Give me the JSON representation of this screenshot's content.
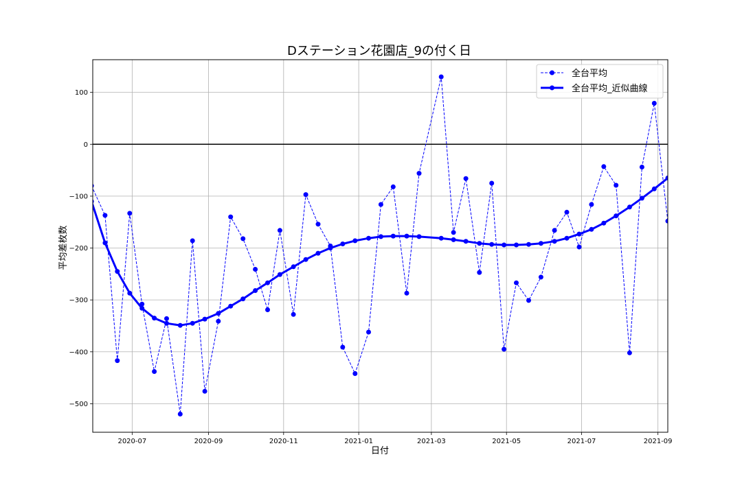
{
  "chart_data": {
    "type": "line",
    "title": "Dステーション花園店_9の付く日",
    "xlabel": "日付",
    "ylabel": "平均差枚数",
    "x_ticks": [
      "2020-07",
      "2020-09",
      "2020-11",
      "2021-01",
      "2021-03",
      "2021-05",
      "2021-07",
      "2021-09"
    ],
    "y_ticks": [
      100,
      0,
      -100,
      -200,
      -300,
      -400,
      -500
    ],
    "xlim": [
      "2020-05-30",
      "2021-09-09"
    ],
    "ylim": [
      -555,
      163
    ],
    "grid": true,
    "reference_line_y": 0,
    "legend_position": "upper right",
    "colors": {
      "series": "#0000ff",
      "reference": "#000000",
      "grid": "#b0b0b0"
    },
    "series": [
      {
        "name": "全台平均",
        "style": "dashed",
        "points": [
          [
            "2020-05-29",
            -80
          ],
          [
            "2020-06-09",
            -137
          ],
          [
            "2020-06-19",
            -417
          ],
          [
            "2020-06-29",
            -133
          ],
          [
            "2020-07-09",
            -308
          ],
          [
            "2020-07-19",
            -438
          ],
          [
            "2020-07-29",
            -336
          ],
          [
            "2020-08-09",
            -520
          ],
          [
            "2020-08-19",
            -186
          ],
          [
            "2020-08-29",
            -476
          ],
          [
            "2020-09-09",
            -341
          ],
          [
            "2020-09-19",
            -140
          ],
          [
            "2020-09-29",
            -182
          ],
          [
            "2020-10-09",
            -241
          ],
          [
            "2020-10-19",
            -319
          ],
          [
            "2020-10-29",
            -166
          ],
          [
            "2020-11-09",
            -328
          ],
          [
            "2020-11-19",
            -97
          ],
          [
            "2020-11-29",
            -154
          ],
          [
            "2020-12-09",
            -196
          ],
          [
            "2020-12-19",
            -391
          ],
          [
            "2020-12-29",
            -442
          ],
          [
            "2021-01-09",
            -362
          ],
          [
            "2021-01-19",
            -116
          ],
          [
            "2021-01-29",
            -82
          ],
          [
            "2021-02-09",
            -287
          ],
          [
            "2021-02-19",
            -56
          ],
          [
            "2021-03-09",
            130
          ],
          [
            "2021-03-19",
            -170
          ],
          [
            "2021-03-29",
            -66
          ],
          [
            "2021-04-09",
            -247
          ],
          [
            "2021-04-19",
            -75
          ],
          [
            "2021-04-29",
            -395
          ],
          [
            "2021-05-09",
            -267
          ],
          [
            "2021-05-19",
            -301
          ],
          [
            "2021-05-29",
            -256
          ],
          [
            "2021-06-09",
            -166
          ],
          [
            "2021-06-19",
            -131
          ],
          [
            "2021-06-29",
            -198
          ],
          [
            "2021-07-09",
            -116
          ],
          [
            "2021-07-19",
            -43
          ],
          [
            "2021-07-29",
            -79
          ],
          [
            "2021-08-09",
            -402
          ],
          [
            "2021-08-19",
            -44
          ],
          [
            "2021-08-29",
            79
          ],
          [
            "2021-09-09",
            -148
          ]
        ]
      },
      {
        "name": "全台平均_近似曲線",
        "style": "solid",
        "points": [
          [
            "2020-05-29",
            -110
          ],
          [
            "2020-06-09",
            -190
          ],
          [
            "2020-06-19",
            -245
          ],
          [
            "2020-06-29",
            -287
          ],
          [
            "2020-07-09",
            -316
          ],
          [
            "2020-07-19",
            -335
          ],
          [
            "2020-07-29",
            -345
          ],
          [
            "2020-08-09",
            -349
          ],
          [
            "2020-08-19",
            -345
          ],
          [
            "2020-08-29",
            -337
          ],
          [
            "2020-09-09",
            -326
          ],
          [
            "2020-09-19",
            -312
          ],
          [
            "2020-09-29",
            -298
          ],
          [
            "2020-10-09",
            -282
          ],
          [
            "2020-10-19",
            -267
          ],
          [
            "2020-10-29",
            -251
          ],
          [
            "2020-11-09",
            -236
          ],
          [
            "2020-11-19",
            -222
          ],
          [
            "2020-11-29",
            -210
          ],
          [
            "2020-12-09",
            -200
          ],
          [
            "2020-12-19",
            -192
          ],
          [
            "2020-12-29",
            -186
          ],
          [
            "2021-01-09",
            -181
          ],
          [
            "2021-01-19",
            -178
          ],
          [
            "2021-01-29",
            -177
          ],
          [
            "2021-02-09",
            -177
          ],
          [
            "2021-02-19",
            -178
          ],
          [
            "2021-03-09",
            -181
          ],
          [
            "2021-03-19",
            -184
          ],
          [
            "2021-03-29",
            -187
          ],
          [
            "2021-04-09",
            -191
          ],
          [
            "2021-04-19",
            -193
          ],
          [
            "2021-04-29",
            -194
          ],
          [
            "2021-05-09",
            -194
          ],
          [
            "2021-05-19",
            -193
          ],
          [
            "2021-05-29",
            -191
          ],
          [
            "2021-06-09",
            -187
          ],
          [
            "2021-06-19",
            -181
          ],
          [
            "2021-06-29",
            -173
          ],
          [
            "2021-07-09",
            -164
          ],
          [
            "2021-07-19",
            -152
          ],
          [
            "2021-07-29",
            -138
          ],
          [
            "2021-08-09",
            -121
          ],
          [
            "2021-08-19",
            -104
          ],
          [
            "2021-08-29",
            -86
          ],
          [
            "2021-09-09",
            -65
          ]
        ]
      }
    ]
  }
}
